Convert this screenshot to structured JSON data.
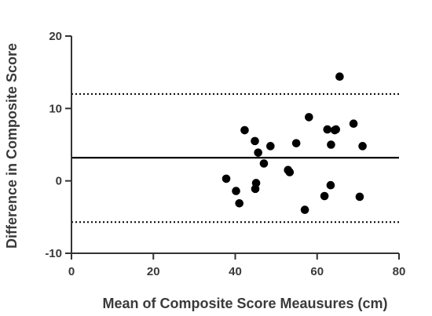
{
  "chart_data": {
    "type": "scatter",
    "title": "",
    "xlabel": "Mean of Composite Score Meausures (cm)",
    "ylabel": "Difference in Composite Score",
    "xlim": [
      0,
      80
    ],
    "ylim": [
      -10,
      20
    ],
    "xticks": [
      0,
      20,
      40,
      60,
      80
    ],
    "yticks": [
      -10,
      0,
      10,
      20
    ],
    "grid": false,
    "legend": "none",
    "colors": {
      "axis": "#333333",
      "points": "#000000",
      "lines": "#000000"
    },
    "reference_lines": [
      {
        "kind": "mean",
        "y": 3.2,
        "style": "solid"
      },
      {
        "kind": "upper-limit",
        "y": 12.0,
        "style": "dotted"
      },
      {
        "kind": "lower-limit",
        "y": -5.7,
        "style": "dotted"
      }
    ],
    "points": [
      {
        "x": 37.8,
        "y": 0.3
      },
      {
        "x": 40.2,
        "y": -1.4
      },
      {
        "x": 41.0,
        "y": -3.1
      },
      {
        "x": 42.3,
        "y": 7.0
      },
      {
        "x": 44.8,
        "y": 5.5
      },
      {
        "x": 45.1,
        "y": -0.3
      },
      {
        "x": 44.9,
        "y": -1.1
      },
      {
        "x": 45.6,
        "y": 3.9
      },
      {
        "x": 47.0,
        "y": 2.4
      },
      {
        "x": 48.6,
        "y": 4.8
      },
      {
        "x": 52.9,
        "y": 1.5
      },
      {
        "x": 53.3,
        "y": 1.2
      },
      {
        "x": 54.9,
        "y": 5.2
      },
      {
        "x": 57.0,
        "y": -4.0
      },
      {
        "x": 58.0,
        "y": 8.8
      },
      {
        "x": 61.8,
        "y": -2.1
      },
      {
        "x": 62.5,
        "y": 7.1
      },
      {
        "x": 63.3,
        "y": -0.6
      },
      {
        "x": 63.4,
        "y": 5.0
      },
      {
        "x": 64.3,
        "y": 7.0
      },
      {
        "x": 64.6,
        "y": 7.1
      },
      {
        "x": 65.5,
        "y": 14.4
      },
      {
        "x": 68.9,
        "y": 7.9
      },
      {
        "x": 70.4,
        "y": -2.2
      },
      {
        "x": 71.1,
        "y": 4.8
      }
    ]
  }
}
